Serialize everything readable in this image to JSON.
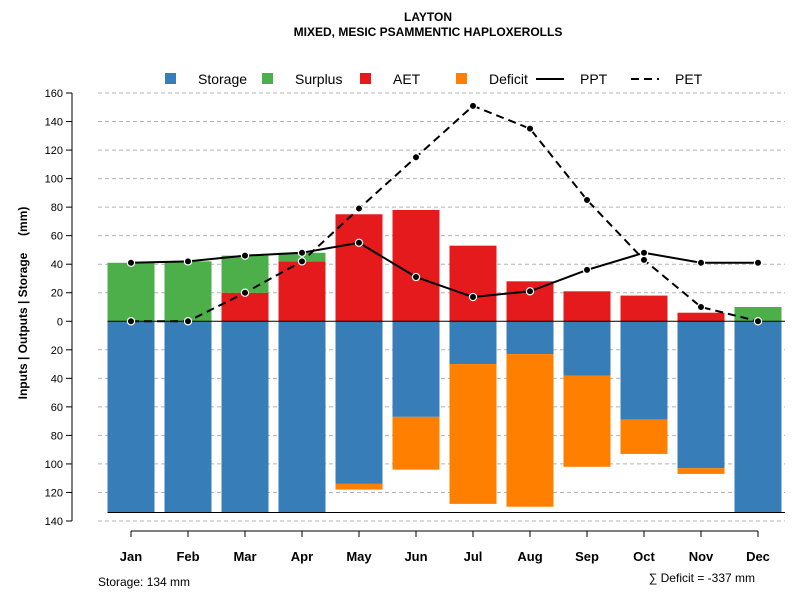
{
  "chart_data": {
    "type": "bar",
    "title": "LAYTON",
    "subtitle": "MIXED, MESIC PSAMMENTIC HAPLOXEROLLS",
    "ylabel": "Inputs | Outputs | Storage     (mm)",
    "xlabel": "",
    "categories": [
      "Jan",
      "Feb",
      "Mar",
      "Apr",
      "May",
      "Jun",
      "Jul",
      "Aug",
      "Sep",
      "Oct",
      "Nov",
      "Dec"
    ],
    "ylim": [
      -140,
      160
    ],
    "yticks": [
      -140,
      -120,
      -100,
      -80,
      -60,
      -40,
      -20,
      0,
      20,
      40,
      60,
      80,
      100,
      120,
      140,
      160
    ],
    "ytick_labels": [
      "140",
      "120",
      "100",
      "80",
      "60",
      "40",
      "20",
      "0",
      "20",
      "40",
      "60",
      "80",
      "100",
      "120",
      "140",
      "160"
    ],
    "grid": true,
    "legend_position": "top",
    "legend": [
      {
        "label": "Storage",
        "kind": "box",
        "color": "#377EB8"
      },
      {
        "label": "Surplus",
        "kind": "box",
        "color": "#4DAF4A"
      },
      {
        "label": "AET",
        "kind": "box",
        "color": "#E41A1C"
      },
      {
        "label": "Deficit",
        "kind": "box",
        "color": "#FF7F00"
      },
      {
        "label": "PPT",
        "kind": "solid-line",
        "color": "#000000"
      },
      {
        "label": "PET",
        "kind": "dashed-line",
        "color": "#000000"
      }
    ],
    "series": [
      {
        "name": "Storage",
        "color": "#377EB8",
        "values": [
          134,
          134,
          134,
          134,
          114,
          67,
          30,
          23,
          38,
          69,
          103,
          134
        ]
      },
      {
        "name": "Deficit",
        "color": "#FF7F00",
        "values": [
          0,
          0,
          0,
          0,
          4,
          37,
          98,
          107,
          64,
          24,
          4,
          0
        ]
      },
      {
        "name": "AET",
        "color": "#E41A1C",
        "values": [
          0,
          0,
          20,
          42,
          75,
          78,
          53,
          28,
          21,
          18,
          6,
          0
        ]
      },
      {
        "name": "Surplus",
        "color": "#4DAF4A",
        "values": [
          41,
          42,
          26,
          6,
          0,
          0,
          0,
          0,
          0,
          0,
          0,
          10
        ]
      },
      {
        "name": "PPT",
        "color": "#000000",
        "line": "solid",
        "values": [
          41,
          42,
          46,
          48,
          55,
          31,
          17,
          21,
          36,
          48,
          41,
          41
        ]
      },
      {
        "name": "PET",
        "color": "#000000",
        "line": "dashed",
        "values": [
          0,
          0,
          20,
          42,
          79,
          115,
          151,
          135,
          85,
          43,
          10,
          0
        ]
      }
    ],
    "footnote_left": "Storage: 134 mm",
    "footnote_right": "∑ Deficit = -337 mm"
  }
}
